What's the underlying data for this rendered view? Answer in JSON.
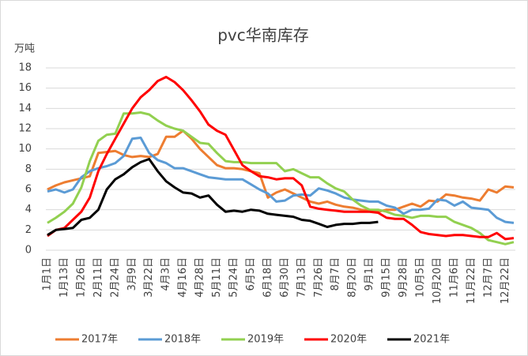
{
  "chart_data": {
    "type": "line",
    "title": "pvc华南库存",
    "y_unit": "万吨",
    "categories": [
      "1月1日",
      null,
      "1月13日",
      null,
      "1月26日",
      null,
      "2月11日",
      null,
      "2月24日",
      null,
      "3月9日",
      null,
      "3月22日",
      null,
      "4月3日",
      null,
      "4月16日",
      null,
      "4月28日",
      null,
      "5月11日",
      null,
      "5月24日",
      null,
      "6月5日",
      null,
      "6月18日",
      null,
      "6月30日",
      null,
      "7月13日",
      null,
      "7月26日",
      null,
      "8月7日",
      null,
      "8月20日",
      null,
      "9月1日",
      null,
      "9月15日",
      null,
      "9月28日",
      null,
      "10月5日",
      null,
      "10月20日",
      null,
      "11月6日",
      null,
      "11月22日",
      null,
      "12月7日",
      null,
      "12月22日",
      null
    ],
    "series": [
      {
        "name": "2017年",
        "color": "#ed7d31",
        "values": [
          6.0,
          6.4,
          6.7,
          6.9,
          7.1,
          7.3,
          9.6,
          9.7,
          9.8,
          9.4,
          9.2,
          9.3,
          9.2,
          9.5,
          11.2,
          11.2,
          11.8,
          11.0,
          10.0,
          9.2,
          8.4,
          8.1,
          8.1,
          8.0,
          7.8,
          7.6,
          5.2,
          5.7,
          6.0,
          5.6,
          5.2,
          4.8,
          4.6,
          4.8,
          4.5,
          4.3,
          4.2,
          4.0,
          3.9,
          3.8,
          4.0,
          4.0,
          4.3,
          4.6,
          4.3,
          4.9,
          4.8,
          5.5,
          5.4,
          5.2,
          5.1,
          4.9,
          6.0,
          5.7,
          6.3,
          6.2
        ]
      },
      {
        "name": "2018年",
        "color": "#5b9bd5",
        "values": [
          5.8,
          6.0,
          5.7,
          6.0,
          7.2,
          7.8,
          8.1,
          8.3,
          8.6,
          9.3,
          11.0,
          11.1,
          9.6,
          8.9,
          8.6,
          8.1,
          8.1,
          7.8,
          7.5,
          7.2,
          7.1,
          7.0,
          7.0,
          7.0,
          6.5,
          6.0,
          5.6,
          4.8,
          4.9,
          5.4,
          5.5,
          5.4,
          6.1,
          5.9,
          5.6,
          5.2,
          5.0,
          4.9,
          4.8,
          4.8,
          4.4,
          4.2,
          3.6,
          4.0,
          4.0,
          4.1,
          5.0,
          4.9,
          4.4,
          4.8,
          4.2,
          4.1,
          4.0,
          3.2,
          2.8,
          2.7
        ]
      },
      {
        "name": "2019年",
        "color": "#92d050",
        "values": [
          2.7,
          3.2,
          3.8,
          4.6,
          6.2,
          8.8,
          10.8,
          11.4,
          11.5,
          13.5,
          13.5,
          13.6,
          13.4,
          12.8,
          12.3,
          12.0,
          11.8,
          11.2,
          10.6,
          10.5,
          9.6,
          8.8,
          8.7,
          8.7,
          8.6,
          8.6,
          8.6,
          8.6,
          7.8,
          8.0,
          7.6,
          7.2,
          7.2,
          6.6,
          6.1,
          5.8,
          5.0,
          4.4,
          4.0,
          4.0,
          3.8,
          3.5,
          3.4,
          3.2,
          3.4,
          3.4,
          3.3,
          3.3,
          2.8,
          2.5,
          2.2,
          1.7,
          1.0,
          0.8,
          0.6,
          0.8
        ]
      },
      {
        "name": "2020年",
        "color": "#ff0000",
        "values": [
          1.4,
          2.0,
          2.2,
          3.0,
          3.8,
          5.2,
          7.8,
          9.5,
          11.0,
          12.5,
          14.0,
          15.1,
          15.8,
          16.7,
          17.1,
          16.6,
          15.8,
          14.8,
          13.7,
          12.4,
          11.8,
          11.4,
          9.9,
          8.4,
          7.8,
          7.3,
          7.2,
          7.0,
          7.1,
          7.1,
          6.4,
          4.3,
          4.1,
          4.0,
          3.9,
          3.8,
          3.8,
          3.8,
          3.8,
          3.7,
          3.2,
          3.1,
          3.1,
          2.5,
          1.8,
          1.6,
          1.5,
          1.4,
          1.5,
          1.5,
          1.4,
          1.3,
          1.3,
          1.7,
          1.1,
          1.2
        ]
      },
      {
        "name": "2021年",
        "color": "#000000",
        "values": [
          1.5,
          2.0,
          2.1,
          2.2,
          3.0,
          3.2,
          4.0,
          6.0,
          7.0,
          7.5,
          8.2,
          8.7,
          9.0,
          7.8,
          6.8,
          6.2,
          5.7,
          5.6,
          5.2,
          5.4,
          4.5,
          3.8,
          3.9,
          3.8,
          4.0,
          3.9,
          3.6,
          3.5,
          3.4,
          3.3,
          3.0,
          2.9,
          2.6,
          2.3,
          2.5,
          2.6,
          2.6,
          2.7,
          2.7,
          2.8,
          null,
          null,
          null,
          null,
          null,
          null,
          null,
          null,
          null,
          null,
          null,
          null,
          null,
          null,
          null,
          null
        ]
      }
    ],
    "ylim": [
      0,
      18
    ],
    "yticks": [
      0,
      2,
      4,
      6,
      8,
      10,
      12,
      14,
      16,
      18
    ],
    "grid": true,
    "legend": "bottom"
  }
}
